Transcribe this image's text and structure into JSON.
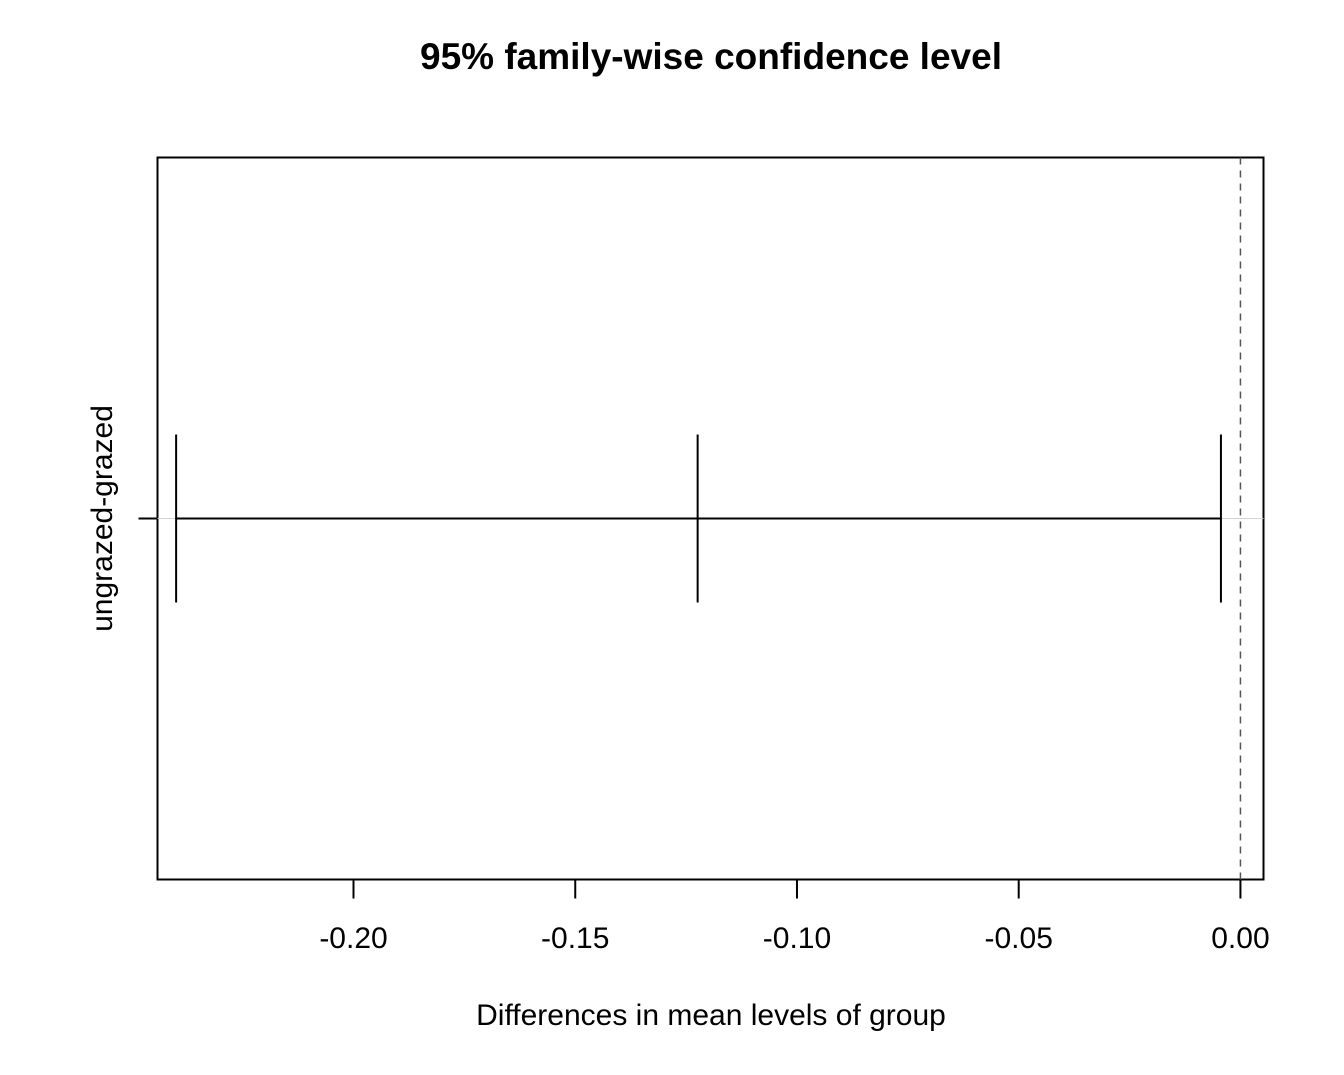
{
  "chart_data": {
    "type": "errorbar",
    "title": "95% family-wise confidence level",
    "xlabel": "Differences in mean levels of group",
    "ylabel": "",
    "xlim": [
      -0.2442,
      0.0052
    ],
    "x_ticks": [
      -0.2,
      -0.15,
      -0.1,
      -0.05,
      0.0
    ],
    "x_tick_labels": [
      "-0.20",
      "-0.15",
      "-0.10",
      "-0.05",
      "0.00"
    ],
    "reference_line": 0.0,
    "comparisons": [
      {
        "label": "ungrazed-grazed",
        "estimate": -0.1224,
        "lower": -0.24,
        "upper": -0.0044
      }
    ],
    "grid": false,
    "legend": "none"
  },
  "colors": {
    "foreground": "#000000",
    "background": "#ffffff",
    "guide_line": "#d3d3d3",
    "reference_line": "#555555"
  }
}
